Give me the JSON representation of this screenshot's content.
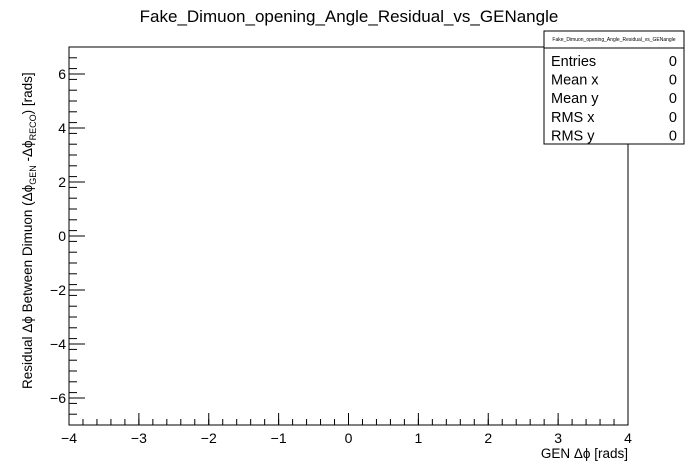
{
  "chart_data": {
    "type": "scatter",
    "title": "Fake_Dimuon_opening_Angle_Residual_vs_GENangle",
    "xlabel": "GEN Δϕ [rads]",
    "ylabel": {
      "prefix": "Residual Δϕ Between Dimuon (Δϕ",
      "sub1": "GEN",
      "mid": " -Δϕ",
      "sub2": "RECO",
      "suffix": ") [rads]"
    },
    "xlim": [
      -4,
      4
    ],
    "ylim": [
      -7,
      7
    ],
    "x_ticks": [
      -4,
      -3,
      -2,
      -1,
      0,
      1,
      2,
      3,
      4
    ],
    "y_ticks": [
      -6,
      -4,
      -2,
      0,
      2,
      4,
      6
    ],
    "x_minor_step": 0.2,
    "y_minor_step": 0.4,
    "grid": false,
    "points": [],
    "stats_box": {
      "title": "Fake_Dimuon_opening_Angle_Residual_vs_GENangle",
      "placement": "top-right",
      "rows": [
        {
          "label": "Entries",
          "value": "0"
        },
        {
          "label": "Mean x",
          "value": "0"
        },
        {
          "label": "Mean y",
          "value": "0"
        },
        {
          "label": "RMS x",
          "value": "0"
        },
        {
          "label": "RMS y",
          "value": "0"
        }
      ]
    }
  }
}
